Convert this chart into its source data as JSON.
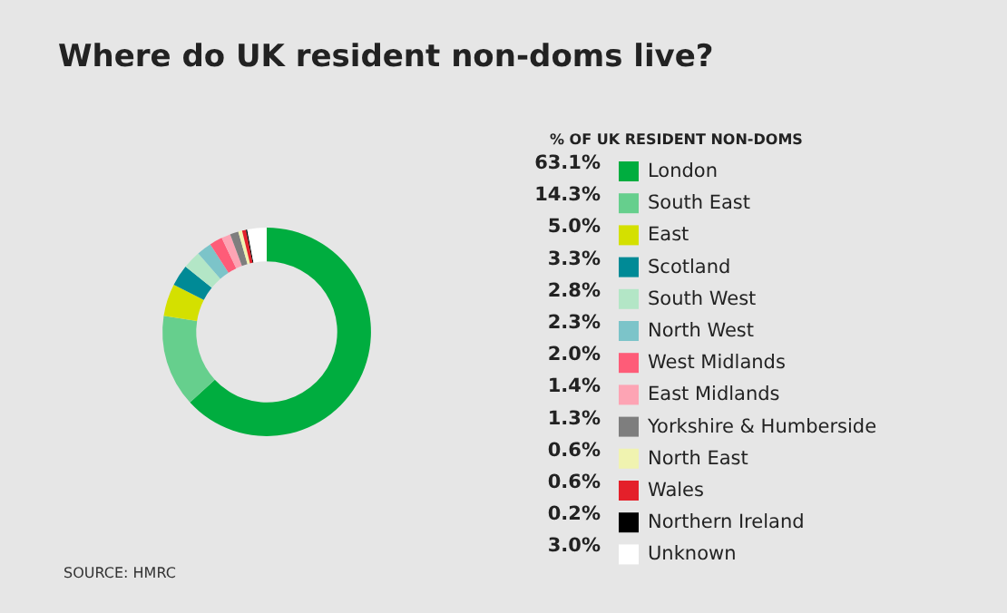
{
  "chart_data": {
    "type": "donut",
    "title": "Where do UK resident non-doms live?",
    "legend_title": "% OF UK RESIDENT NON-DOMS",
    "categories": [
      "London",
      "South East",
      "East",
      "Scotland",
      "South West",
      "North West",
      "West Midlands",
      "East Midlands",
      "Yorkshire & Humberside",
      "North East",
      "Wales",
      "Northern Ireland",
      "Unknown"
    ],
    "values": [
      63.1,
      14.3,
      5.0,
      3.3,
      2.8,
      2.3,
      2.0,
      1.4,
      1.3,
      0.6,
      0.6,
      0.2,
      3.0
    ],
    "colors": [
      "#00ad3f",
      "#66cf8d",
      "#d4e000",
      "#008a96",
      "#b3e6c6",
      "#7cc4c9",
      "#fe5c78",
      "#fda4b4",
      "#7e7e7e",
      "#f0f3b0",
      "#e4202a",
      "#000000",
      "#ffffff"
    ],
    "value_labels": [
      "63.1%",
      "14.3%",
      "5.0%",
      "3.3%",
      "2.8%",
      "2.3%",
      "2.0%",
      "1.4%",
      "1.3%",
      "0.6%",
      "0.6%",
      "0.2%",
      "3.0%"
    ],
    "legend": "right",
    "annotations": [
      "SOURCE: HMRC"
    ]
  }
}
